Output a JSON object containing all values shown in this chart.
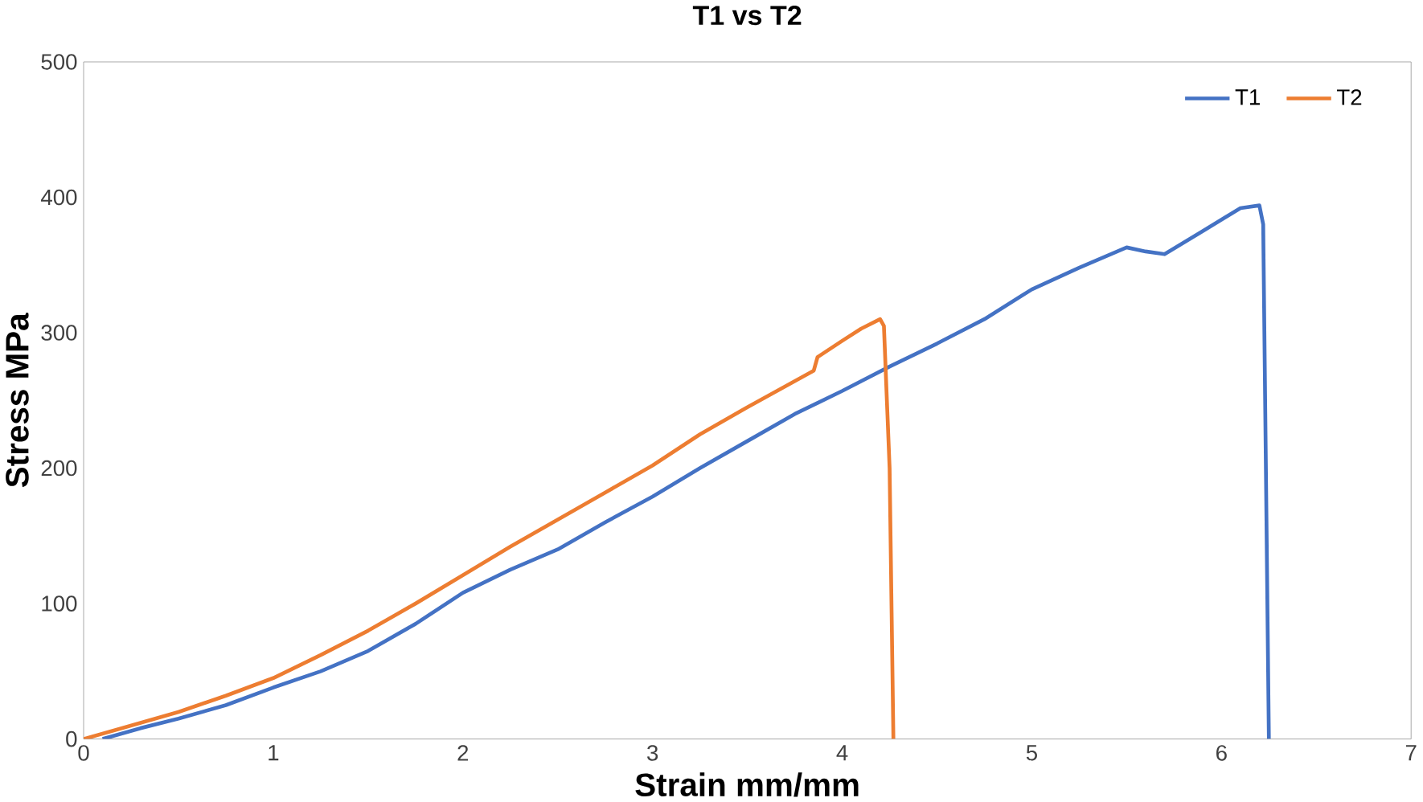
{
  "chart_data": {
    "type": "line",
    "title": "T1 vs T2",
    "xlabel": "Strain mm/mm",
    "ylabel": "Stress MPa",
    "xlim": [
      0,
      7
    ],
    "ylim": [
      0,
      500
    ],
    "xticks": [
      0,
      1,
      2,
      3,
      4,
      5,
      6,
      7
    ],
    "yticks": [
      0,
      100,
      200,
      300,
      400,
      500
    ],
    "grid": false,
    "legend": "top right",
    "marker": "none",
    "line_style": "solid",
    "series": [
      {
        "name": "T1",
        "color": "#4472c4",
        "x": [
          0.1,
          0.3,
          0.5,
          0.75,
          1,
          1.25,
          1.5,
          1.75,
          2,
          2.25,
          2.5,
          2.75,
          3,
          3.25,
          3.5,
          3.75,
          4,
          4.25,
          4.5,
          4.75,
          5,
          5.25,
          5.5,
          5.6,
          5.7,
          5.9,
          6.1,
          6.2,
          6.22,
          6.25
        ],
        "values": [
          0,
          8,
          15,
          25,
          38,
          50,
          65,
          85,
          108,
          125,
          140,
          160,
          179,
          200,
          220,
          240,
          257,
          275,
          292,
          310,
          332,
          348,
          363,
          360,
          358,
          375,
          392,
          394,
          380,
          0
        ]
      },
      {
        "name": "T2",
        "color": "#ed7d31",
        "x": [
          0,
          0.2,
          0.5,
          0.75,
          1,
          1.25,
          1.5,
          1.75,
          2,
          2.25,
          2.5,
          2.75,
          3,
          3.25,
          3.5,
          3.85,
          3.87,
          4,
          4.1,
          4.2,
          4.22,
          4.25,
          4.27
        ],
        "values": [
          0,
          8,
          20,
          32,
          45,
          62,
          80,
          100,
          121,
          142,
          162,
          182,
          202,
          225,
          245,
          272,
          282,
          294,
          303,
          310,
          305,
          200,
          0
        ]
      }
    ]
  }
}
